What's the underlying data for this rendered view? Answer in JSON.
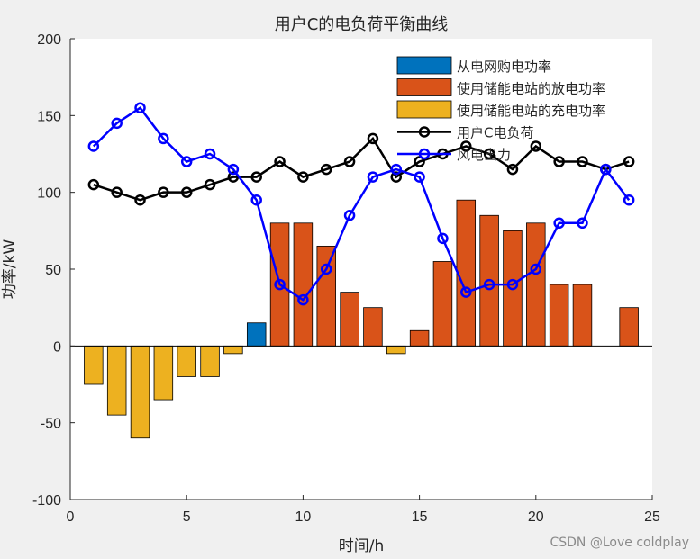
{
  "chart_data": {
    "type": "bar",
    "title": "用户C的电负荷平衡曲线",
    "xlabel": "时间/h",
    "ylabel": "功率/kW",
    "xlim": [
      0,
      25
    ],
    "ylim": [
      -100,
      200
    ],
    "xticks": [
      0,
      5,
      10,
      15,
      20,
      25
    ],
    "yticks": [
      -100,
      -50,
      0,
      50,
      100,
      150,
      200
    ],
    "x": [
      1,
      2,
      3,
      4,
      5,
      6,
      7,
      8,
      9,
      10,
      11,
      12,
      13,
      14,
      15,
      16,
      17,
      18,
      19,
      20,
      21,
      22,
      23,
      24
    ],
    "legend_position": "top-right",
    "grid": false,
    "bar_series": [
      {
        "name": "从电网购电功率",
        "color": "#0072BD",
        "values": [
          0,
          0,
          0,
          0,
          0,
          0,
          0,
          15,
          0,
          0,
          0,
          0,
          0,
          0,
          0,
          0,
          0,
          0,
          0,
          0,
          0,
          0,
          0,
          0
        ]
      },
      {
        "name": "使用储能电站的放电功率",
        "color": "#D95319",
        "values": [
          0,
          0,
          0,
          0,
          0,
          0,
          0,
          0,
          80,
          80,
          65,
          35,
          25,
          0,
          10,
          55,
          95,
          85,
          75,
          80,
          40,
          40,
          0,
          25
        ]
      },
      {
        "name": "使用储能电站的充电功率",
        "color": "#EDB120",
        "values": [
          -25,
          -45,
          -60,
          -35,
          -20,
          -20,
          -5,
          0,
          0,
          0,
          0,
          0,
          0,
          -5,
          0,
          0,
          0,
          0,
          0,
          0,
          0,
          0,
          0,
          0
        ]
      }
    ],
    "line_series": [
      {
        "name": "用户C电负荷",
        "color": "#000000",
        "values": [
          105,
          100,
          95,
          100,
          100,
          105,
          110,
          110,
          120,
          110,
          115,
          120,
          135,
          110,
          120,
          125,
          130,
          125,
          115,
          130,
          120,
          120,
          115,
          120
        ]
      },
      {
        "name": "风电出力",
        "color": "#0000FF",
        "values": [
          130,
          145,
          155,
          135,
          120,
          125,
          115,
          95,
          40,
          30,
          50,
          85,
          110,
          115,
          110,
          70,
          35,
          40,
          40,
          50,
          80,
          80,
          115,
          95
        ]
      }
    ]
  },
  "watermark": "CSDN @Love coldplay"
}
